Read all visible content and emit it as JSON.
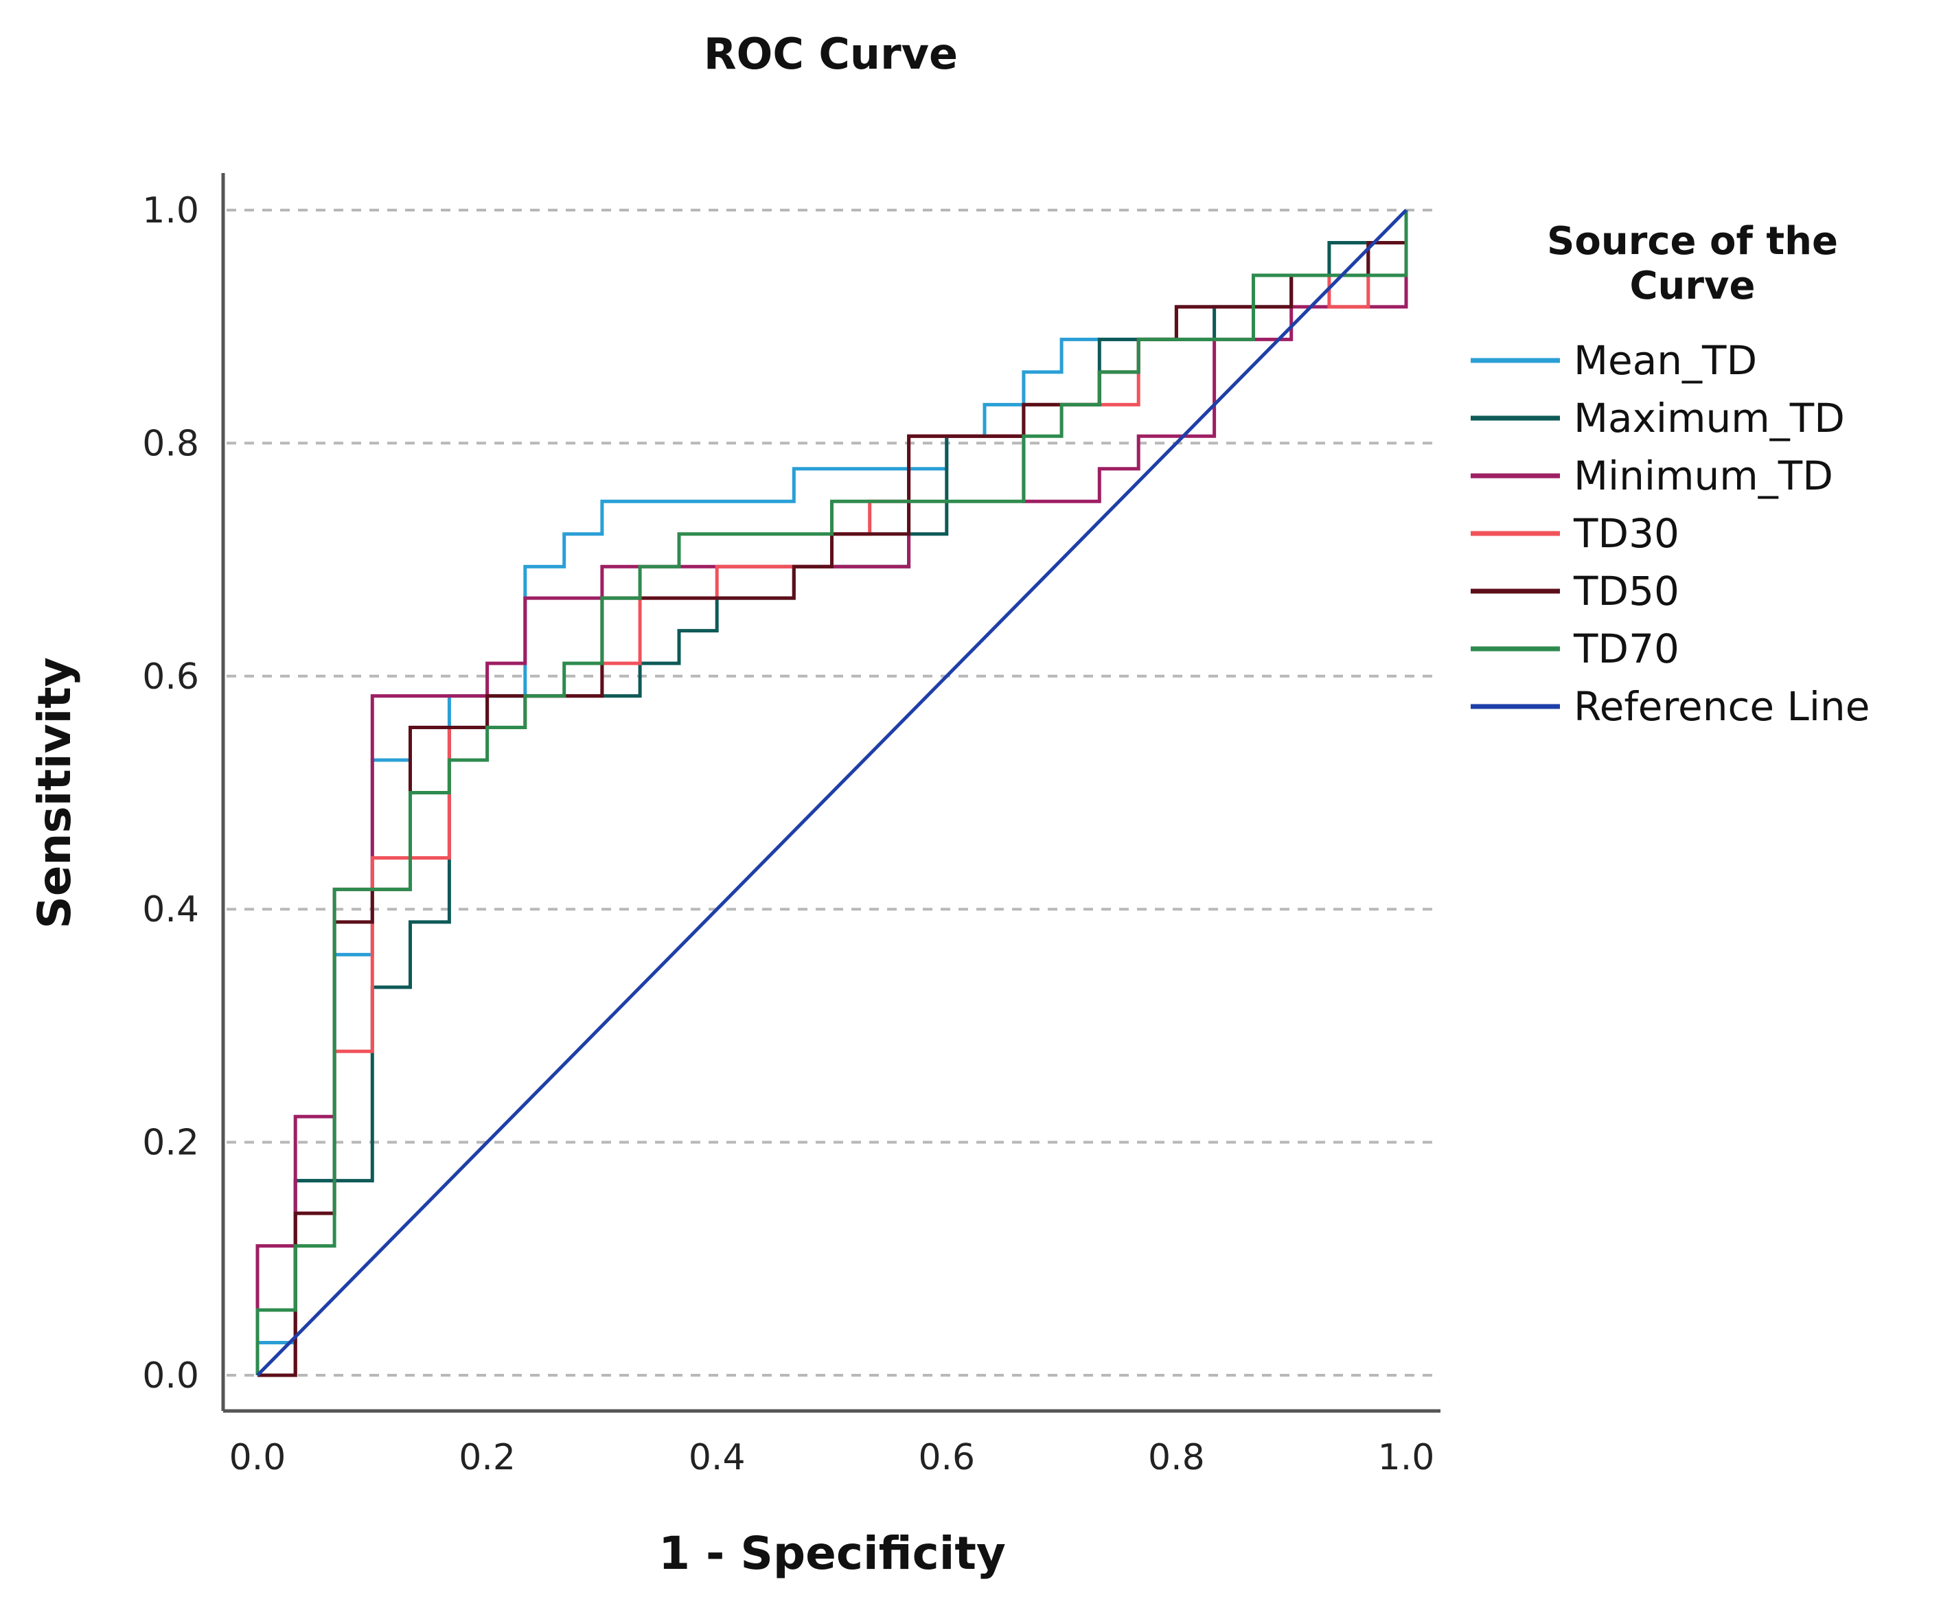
{
  "chart_data": {
    "type": "line",
    "title": "ROC Curve",
    "xlabel": "1 - Specificity",
    "ylabel": "Sensitivity",
    "xlim": [
      0,
      1
    ],
    "ylim": [
      0,
      1
    ],
    "xticks": [
      "0.0",
      "0.2",
      "0.4",
      "0.6",
      "0.8",
      "1.0"
    ],
    "yticks": [
      "0.0",
      "0.2",
      "0.4",
      "0.6",
      "0.8",
      "1.0"
    ],
    "grid": "horizontal dashed",
    "legend": {
      "title_line1": "Source of the",
      "title_line2": "Curve",
      "position": "right"
    },
    "series": [
      {
        "name": "Mean_TD",
        "color": "#2a9fd6",
        "points": [
          [
            0,
            0
          ],
          [
            0,
            0.028
          ],
          [
            0.033,
            0.028
          ],
          [
            0.033,
            0.167
          ],
          [
            0.067,
            0.167
          ],
          [
            0.067,
            0.361
          ],
          [
            0.1,
            0.361
          ],
          [
            0.1,
            0.528
          ],
          [
            0.133,
            0.528
          ],
          [
            0.133,
            0.556
          ],
          [
            0.167,
            0.556
          ],
          [
            0.167,
            0.583
          ],
          [
            0.233,
            0.583
          ],
          [
            0.233,
            0.694
          ],
          [
            0.267,
            0.694
          ],
          [
            0.267,
            0.722
          ],
          [
            0.3,
            0.722
          ],
          [
            0.3,
            0.75
          ],
          [
            0.467,
            0.75
          ],
          [
            0.467,
            0.778
          ],
          [
            0.6,
            0.778
          ],
          [
            0.6,
            0.806
          ],
          [
            0.633,
            0.806
          ],
          [
            0.633,
            0.833
          ],
          [
            0.667,
            0.833
          ],
          [
            0.667,
            0.861
          ],
          [
            0.7,
            0.861
          ],
          [
            0.7,
            0.889
          ],
          [
            0.8,
            0.889
          ],
          [
            0.8,
            0.917
          ],
          [
            0.9,
            0.917
          ],
          [
            0.9,
            0.944
          ],
          [
            0.967,
            0.944
          ],
          [
            0.967,
            0.972
          ],
          [
            1.0,
            0.972
          ],
          [
            1.0,
            1.0
          ]
        ]
      },
      {
        "name": "Maximum_TD",
        "color": "#0e5a57",
        "points": [
          [
            0,
            0
          ],
          [
            0.033,
            0
          ],
          [
            0.033,
            0.167
          ],
          [
            0.1,
            0.167
          ],
          [
            0.1,
            0.333
          ],
          [
            0.133,
            0.333
          ],
          [
            0.133,
            0.389
          ],
          [
            0.167,
            0.389
          ],
          [
            0.167,
            0.556
          ],
          [
            0.2,
            0.556
          ],
          [
            0.2,
            0.583
          ],
          [
            0.333,
            0.583
          ],
          [
            0.333,
            0.611
          ],
          [
            0.367,
            0.611
          ],
          [
            0.367,
            0.639
          ],
          [
            0.4,
            0.639
          ],
          [
            0.4,
            0.667
          ],
          [
            0.467,
            0.667
          ],
          [
            0.467,
            0.694
          ],
          [
            0.567,
            0.694
          ],
          [
            0.567,
            0.722
          ],
          [
            0.6,
            0.722
          ],
          [
            0.6,
            0.806
          ],
          [
            0.667,
            0.806
          ],
          [
            0.667,
            0.833
          ],
          [
            0.733,
            0.833
          ],
          [
            0.733,
            0.889
          ],
          [
            0.833,
            0.889
          ],
          [
            0.833,
            0.917
          ],
          [
            0.9,
            0.917
          ],
          [
            0.9,
            0.944
          ],
          [
            0.933,
            0.944
          ],
          [
            0.933,
            0.972
          ],
          [
            1.0,
            0.972
          ],
          [
            1.0,
            1.0
          ]
        ]
      },
      {
        "name": "Minimum_TD",
        "color": "#9e1f63",
        "points": [
          [
            0,
            0
          ],
          [
            0,
            0.111
          ],
          [
            0.033,
            0.111
          ],
          [
            0.033,
            0.222
          ],
          [
            0.067,
            0.222
          ],
          [
            0.067,
            0.417
          ],
          [
            0.1,
            0.417
          ],
          [
            0.1,
            0.583
          ],
          [
            0.2,
            0.583
          ],
          [
            0.2,
            0.611
          ],
          [
            0.233,
            0.611
          ],
          [
            0.233,
            0.667
          ],
          [
            0.3,
            0.667
          ],
          [
            0.3,
            0.694
          ],
          [
            0.567,
            0.694
          ],
          [
            0.567,
            0.806
          ],
          [
            0.667,
            0.806
          ],
          [
            0.667,
            0.75
          ],
          [
            0.733,
            0.75
          ],
          [
            0.733,
            0.778
          ],
          [
            0.767,
            0.778
          ],
          [
            0.767,
            0.806
          ],
          [
            0.833,
            0.806
          ],
          [
            0.833,
            0.889
          ],
          [
            0.9,
            0.889
          ],
          [
            0.9,
            0.917
          ],
          [
            1.0,
            0.917
          ],
          [
            1.0,
            0.944
          ]
        ]
      },
      {
        "name": "TD30",
        "color": "#f0535b",
        "points": [
          [
            0,
            0
          ],
          [
            0.033,
            0
          ],
          [
            0.033,
            0.139
          ],
          [
            0.067,
            0.139
          ],
          [
            0.067,
            0.278
          ],
          [
            0.1,
            0.278
          ],
          [
            0.1,
            0.444
          ],
          [
            0.167,
            0.444
          ],
          [
            0.167,
            0.556
          ],
          [
            0.233,
            0.556
          ],
          [
            0.233,
            0.583
          ],
          [
            0.3,
            0.583
          ],
          [
            0.3,
            0.611
          ],
          [
            0.333,
            0.611
          ],
          [
            0.333,
            0.667
          ],
          [
            0.4,
            0.667
          ],
          [
            0.4,
            0.694
          ],
          [
            0.5,
            0.694
          ],
          [
            0.5,
            0.722
          ],
          [
            0.533,
            0.722
          ],
          [
            0.533,
            0.75
          ],
          [
            0.567,
            0.75
          ],
          [
            0.567,
            0.806
          ],
          [
            0.667,
            0.806
          ],
          [
            0.667,
            0.833
          ],
          [
            0.767,
            0.833
          ],
          [
            0.767,
            0.889
          ],
          [
            0.8,
            0.889
          ],
          [
            0.8,
            0.917
          ],
          [
            0.9,
            0.917
          ],
          [
            0.9,
            0.944
          ],
          [
            0.933,
            0.944
          ],
          [
            0.933,
            0.917
          ],
          [
            0.967,
            0.917
          ],
          [
            0.967,
            0.972
          ],
          [
            1.0,
            0.972
          ],
          [
            1.0,
            1.0
          ]
        ]
      },
      {
        "name": "TD50",
        "color": "#5c0f1a",
        "points": [
          [
            0,
            0
          ],
          [
            0.033,
            0
          ],
          [
            0.033,
            0.139
          ],
          [
            0.067,
            0.139
          ],
          [
            0.067,
            0.389
          ],
          [
            0.1,
            0.389
          ],
          [
            0.1,
            0.417
          ],
          [
            0.133,
            0.417
          ],
          [
            0.133,
            0.556
          ],
          [
            0.2,
            0.556
          ],
          [
            0.2,
            0.583
          ],
          [
            0.3,
            0.583
          ],
          [
            0.3,
            0.667
          ],
          [
            0.467,
            0.667
          ],
          [
            0.467,
            0.694
          ],
          [
            0.5,
            0.694
          ],
          [
            0.5,
            0.722
          ],
          [
            0.567,
            0.722
          ],
          [
            0.567,
            0.806
          ],
          [
            0.667,
            0.806
          ],
          [
            0.667,
            0.833
          ],
          [
            0.733,
            0.833
          ],
          [
            0.733,
            0.861
          ],
          [
            0.767,
            0.861
          ],
          [
            0.767,
            0.889
          ],
          [
            0.8,
            0.889
          ],
          [
            0.8,
            0.917
          ],
          [
            0.9,
            0.917
          ],
          [
            0.9,
            0.944
          ],
          [
            0.967,
            0.944
          ],
          [
            0.967,
            0.972
          ],
          [
            1.0,
            0.972
          ],
          [
            1.0,
            1.0
          ]
        ]
      },
      {
        "name": "TD70",
        "color": "#2e8b4e",
        "points": [
          [
            0,
            0
          ],
          [
            0,
            0.056
          ],
          [
            0.033,
            0.056
          ],
          [
            0.033,
            0.111
          ],
          [
            0.067,
            0.111
          ],
          [
            0.067,
            0.417
          ],
          [
            0.133,
            0.417
          ],
          [
            0.133,
            0.5
          ],
          [
            0.167,
            0.5
          ],
          [
            0.167,
            0.528
          ],
          [
            0.2,
            0.528
          ],
          [
            0.2,
            0.556
          ],
          [
            0.233,
            0.556
          ],
          [
            0.233,
            0.583
          ],
          [
            0.267,
            0.583
          ],
          [
            0.267,
            0.611
          ],
          [
            0.3,
            0.611
          ],
          [
            0.3,
            0.667
          ],
          [
            0.333,
            0.667
          ],
          [
            0.333,
            0.694
          ],
          [
            0.367,
            0.694
          ],
          [
            0.367,
            0.722
          ],
          [
            0.5,
            0.722
          ],
          [
            0.5,
            0.75
          ],
          [
            0.667,
            0.75
          ],
          [
            0.667,
            0.806
          ],
          [
            0.7,
            0.806
          ],
          [
            0.7,
            0.833
          ],
          [
            0.733,
            0.833
          ],
          [
            0.733,
            0.861
          ],
          [
            0.767,
            0.861
          ],
          [
            0.767,
            0.889
          ],
          [
            0.867,
            0.889
          ],
          [
            0.867,
            0.944
          ],
          [
            1.0,
            0.944
          ],
          [
            1.0,
            1.0
          ]
        ]
      },
      {
        "name": "Reference Line",
        "color": "#1f3fa8",
        "points": [
          [
            0,
            0
          ],
          [
            1,
            1
          ]
        ]
      }
    ]
  }
}
